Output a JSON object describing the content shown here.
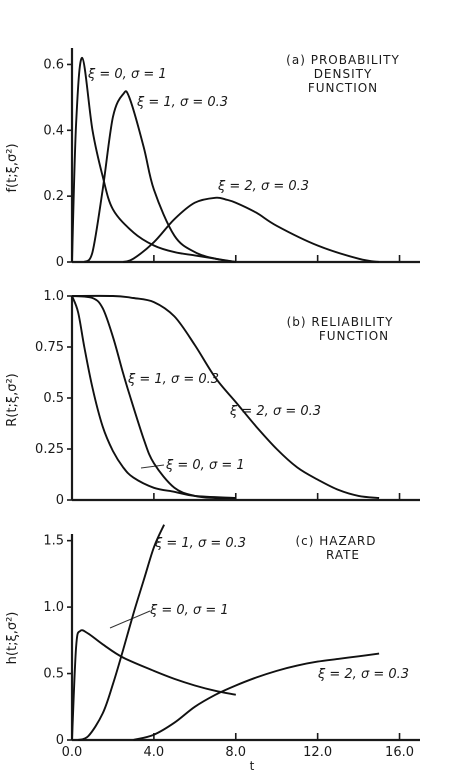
{
  "chart_data": [
    {
      "type": "line",
      "title": [
        "(a) PROBABILITY",
        "DENSITY",
        "FUNCTION"
      ],
      "ylabel": "f(t;ξ,σ²)",
      "xlabel": "",
      "xlim": [
        0,
        17
      ],
      "ylim": [
        0,
        0.65
      ],
      "xticks": [
        4.0,
        8.0,
        12.0,
        16.0
      ],
      "xtick_labels": [
        "",
        "",
        "",
        ""
      ],
      "yticks": [
        0,
        0.2,
        0.4,
        0.6
      ],
      "ytick_labels": [
        "0",
        "0.2",
        "0.4",
        "0.6"
      ],
      "series": [
        {
          "name": "ξ = 0, σ = 1",
          "x": [
            0.0,
            0.2,
            0.5,
            1.0,
            1.5,
            2.0,
            3.0,
            4.0,
            5.0,
            6.0,
            7.0,
            8.0
          ],
          "y": [
            0.0,
            0.42,
            0.62,
            0.4,
            0.26,
            0.16,
            0.09,
            0.05,
            0.03,
            0.02,
            0.01,
            0.0
          ]
        },
        {
          "name": "ξ = 1, σ = 0.3",
          "x": [
            0.6,
            1.0,
            1.5,
            2.0,
            2.5,
            2.8,
            3.5,
            4.0,
            5.0,
            6.0,
            7.0,
            8.0
          ],
          "y": [
            0.0,
            0.03,
            0.22,
            0.44,
            0.51,
            0.5,
            0.35,
            0.22,
            0.08,
            0.03,
            0.01,
            0.0
          ]
        },
        {
          "name": "ξ = 2, σ = 0.3",
          "x": [
            2.5,
            3.0,
            4.0,
            5.0,
            6.0,
            7.0,
            7.5,
            8.0,
            9.0,
            10.0,
            12.0,
            14.0,
            15.0
          ],
          "y": [
            0.0,
            0.01,
            0.06,
            0.13,
            0.18,
            0.195,
            0.19,
            0.18,
            0.15,
            0.11,
            0.05,
            0.01,
            0.0
          ]
        }
      ],
      "annotations": [
        "ξ = 0, σ = 1",
        "ξ = 1, σ = 0.3",
        "ξ = 2, σ = 0.3"
      ]
    },
    {
      "type": "line",
      "title": [
        "(b) RELIABILITY",
        "FUNCTION"
      ],
      "ylabel": "R(t;ξ,σ²)",
      "xlabel": "",
      "xlim": [
        0,
        17
      ],
      "ylim": [
        0,
        1.0
      ],
      "xticks": [
        4.0,
        8.0,
        12.0,
        16.0
      ],
      "xtick_labels": [
        "",
        "",
        "",
        ""
      ],
      "yticks": [
        0,
        0.25,
        0.5,
        0.75,
        1.0
      ],
      "ytick_labels": [
        "0",
        "0.25",
        "0.5",
        "0.75",
        "1.0"
      ],
      "series": [
        {
          "name": "ξ = 0, σ = 1",
          "x": [
            0.0,
            0.3,
            0.6,
            1.0,
            1.5,
            2.0,
            2.5,
            3.0,
            4.0,
            5.0,
            6.0,
            8.0
          ],
          "y": [
            1.0,
            0.92,
            0.75,
            0.55,
            0.36,
            0.24,
            0.16,
            0.11,
            0.06,
            0.04,
            0.02,
            0.01
          ]
        },
        {
          "name": "ξ = 1, σ = 0.3",
          "x": [
            0.0,
            1.0,
            1.5,
            2.0,
            2.5,
            2.8,
            3.5,
            4.0,
            5.0,
            6.0,
            7.0,
            8.0
          ],
          "y": [
            1.0,
            0.99,
            0.94,
            0.8,
            0.62,
            0.52,
            0.3,
            0.18,
            0.06,
            0.02,
            0.01,
            0.01
          ]
        },
        {
          "name": "ξ = 2, σ = 0.3",
          "x": [
            0.0,
            2.0,
            3.0,
            4.0,
            5.0,
            6.0,
            7.0,
            8.0,
            9.0,
            10.0,
            11.0,
            12.0,
            13.0,
            14.0,
            15.0
          ],
          "y": [
            1.0,
            1.0,
            0.99,
            0.97,
            0.9,
            0.76,
            0.6,
            0.48,
            0.36,
            0.25,
            0.16,
            0.1,
            0.05,
            0.02,
            0.01
          ]
        }
      ],
      "annotations": [
        "ξ = 1, σ = 0.3",
        "ξ = 2, σ = 0.3",
        "ξ = 0, σ = 1"
      ]
    },
    {
      "type": "line",
      "title": [
        "(c) HAZARD",
        "RATE"
      ],
      "ylabel": "h(t;ξ,σ²)",
      "xlabel": "t",
      "xlim": [
        0,
        17
      ],
      "ylim": [
        0,
        1.55
      ],
      "xticks": [
        0.0,
        4.0,
        8.0,
        12.0,
        16.0
      ],
      "xtick_labels": [
        "0.0",
        "4.0",
        "8.0",
        "12.0",
        "16.0"
      ],
      "yticks": [
        0,
        0.5,
        1.0,
        1.5
      ],
      "ytick_labels": [
        "0",
        "0.5",
        "1.0",
        "1.5"
      ],
      "series": [
        {
          "name": "ξ = 0, σ = 1",
          "x": [
            0.0,
            0.2,
            0.4,
            0.8,
            1.5,
            2.5,
            4.0,
            5.0,
            6.0,
            7.0,
            8.0
          ],
          "y": [
            0.0,
            0.7,
            0.82,
            0.8,
            0.72,
            0.62,
            0.52,
            0.46,
            0.41,
            0.37,
            0.34
          ]
        },
        {
          "name": "ξ = 1, σ = 0.3",
          "x": [
            0.3,
            0.8,
            1.5,
            2.0,
            2.5,
            3.0,
            3.5,
            4.0,
            4.5
          ],
          "y": [
            0.0,
            0.03,
            0.2,
            0.42,
            0.68,
            0.95,
            1.2,
            1.45,
            1.62
          ]
        },
        {
          "name": "ξ = 2, σ = 0.3",
          "x": [
            3.0,
            4.0,
            5.0,
            6.0,
            7.0,
            8.0,
            9.0,
            10.0,
            11.0,
            12.0,
            13.0,
            14.0,
            15.0
          ],
          "y": [
            0.0,
            0.04,
            0.13,
            0.25,
            0.34,
            0.41,
            0.47,
            0.52,
            0.56,
            0.59,
            0.61,
            0.63,
            0.65
          ]
        }
      ],
      "annotations": [
        "ξ = 1, σ = 0.3",
        "ξ = 0, σ = 1",
        "ξ = 2, σ = 0.3"
      ]
    }
  ]
}
